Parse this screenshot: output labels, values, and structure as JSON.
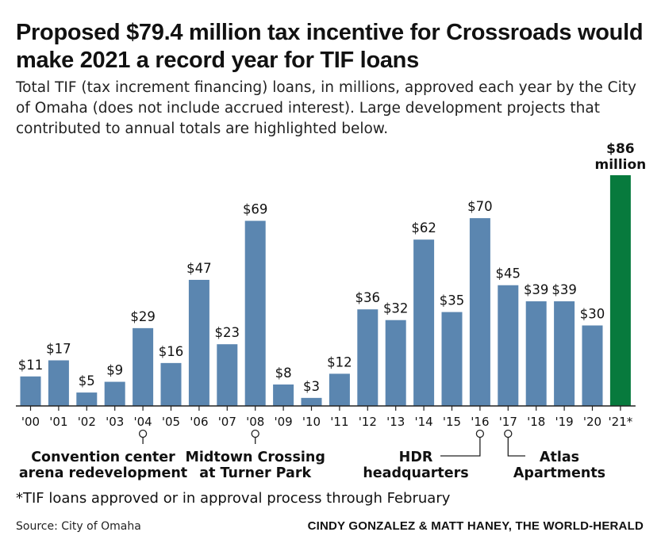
{
  "chart_data": {
    "type": "bar",
    "title": "Proposed $79.4 million tax incentive for Crossroads would make 2021 a record year for TIF loans",
    "subtitle": "Total TIF (tax increment financing) loans, in millions, approved each year by the City of Omaha (does not include accrued interest). Large development projects that contributed to annual totals are highlighted below.",
    "categories": [
      "'00",
      "'01",
      "'02",
      "'03",
      "'04",
      "'05",
      "'06",
      "'07",
      "'08",
      "'09",
      "'10",
      "'11",
      "'12",
      "'13",
      "'14",
      "'15",
      "'16",
      "'17",
      "'18",
      "'19",
      "'20",
      "'21*"
    ],
    "values": [
      11,
      17,
      5,
      9,
      29,
      16,
      47,
      23,
      69,
      8,
      3,
      12,
      36,
      32,
      62,
      35,
      70,
      45,
      39,
      39,
      30,
      86
    ],
    "labels": [
      "$11",
      "$17",
      "$5",
      "$9",
      "$29",
      "$16",
      "$47",
      "$23",
      "$69",
      "$8",
      "$3",
      "$12",
      "$36",
      "$32",
      "$62",
      "$35",
      "$70",
      "$45",
      "$39",
      "$39",
      "$30"
    ],
    "highlight_label_line1": "$86",
    "highlight_label_line2": "million",
    "highlight_index": 21,
    "ylim": [
      0,
      86
    ],
    "xlabel": "",
    "ylabel": "",
    "colors": {
      "bar": "#5b86b0",
      "highlight": "#077a3d",
      "axis": "#222222"
    },
    "annotations": [
      {
        "index": 4,
        "line1": "Convention center",
        "line2": "arena redevelopment"
      },
      {
        "index": 8,
        "line1": "Midtown Crossing",
        "line2": "at Turner Park"
      },
      {
        "index": 16,
        "line1": "HDR",
        "line2": "headquarters"
      },
      {
        "index": 17,
        "line1": "Atlas",
        "line2": "Apartments"
      }
    ],
    "footnote": "*TIF loans approved or in approval process through February",
    "source": "Source: City of Omaha",
    "credit": "CINDY GONZALEZ & MATT HANEY, THE WORLD-HERALD"
  }
}
